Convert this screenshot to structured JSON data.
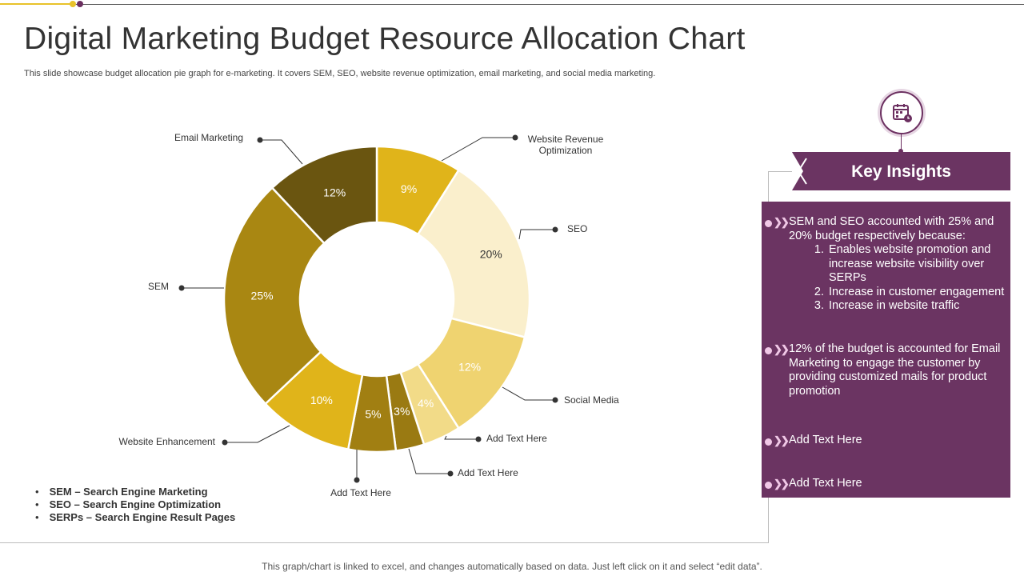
{
  "title": "Digital Marketing Budget Resource Allocation Chart",
  "subtitle": "This slide showcase budget allocation pie graph for e-marketing. It covers SEM,  SEO, website revenue optimization, email marketing, and social media marketing.",
  "chart_data": {
    "type": "pie",
    "style": "donut",
    "slices": [
      {
        "label": "Website Revenue Optimization",
        "value": 9,
        "value_label": "9%",
        "color": "#e0b41a"
      },
      {
        "label": "SEO",
        "value": 20,
        "value_label": "20%",
        "color": "#faefcc"
      },
      {
        "label": "Social Media",
        "value": 12,
        "value_label": "12%",
        "color": "#efd370"
      },
      {
        "label": "Add Text Here",
        "value": 4,
        "value_label": "4%",
        "color": "#f2db88"
      },
      {
        "label": "Add Text Here",
        "value": 3,
        "value_label": "3%",
        "color": "#9a7a12"
      },
      {
        "label": "Add Text Here",
        "value": 5,
        "value_label": "5%",
        "color": "#a17f12"
      },
      {
        "label": "Website Enhancement",
        "value": 10,
        "value_label": "10%",
        "color": "#e0b41a"
      },
      {
        "label": "SEM",
        "value": 25,
        "value_label": "25%",
        "color": "#a98712"
      },
      {
        "label": "Email Marketing",
        "value": 12,
        "value_label": "12%",
        "color": "#6a5510"
      }
    ]
  },
  "abbreviations": [
    "SEM – Search Engine Marketing",
    "SEO – Search Engine Optimization",
    "SERPs – Search Engine Result Pages"
  ],
  "insights": {
    "title": "Key Insights",
    "icon": "calendar-clock-icon",
    "items": [
      {
        "text": "SEM and SEO accounted with 25% and 20% budget respectively because:",
        "subitems": [
          "Enables website promotion and increase website visibility over SERPs",
          "Increase in customer engagement",
          "Increase in website traffic"
        ]
      },
      {
        "text": "12% of the budget is accounted for Email Marketing to engage the customer by providing customized mails for product promotion"
      },
      {
        "text": "Add Text Here"
      },
      {
        "text": "Add Text Here"
      }
    ]
  },
  "footer": "This graph/chart is linked to excel,  and changes automatically based on data. Just left click on it and select “edit data”.",
  "colors": {
    "accent": "#6b3462",
    "gold": "#e0b41a"
  }
}
